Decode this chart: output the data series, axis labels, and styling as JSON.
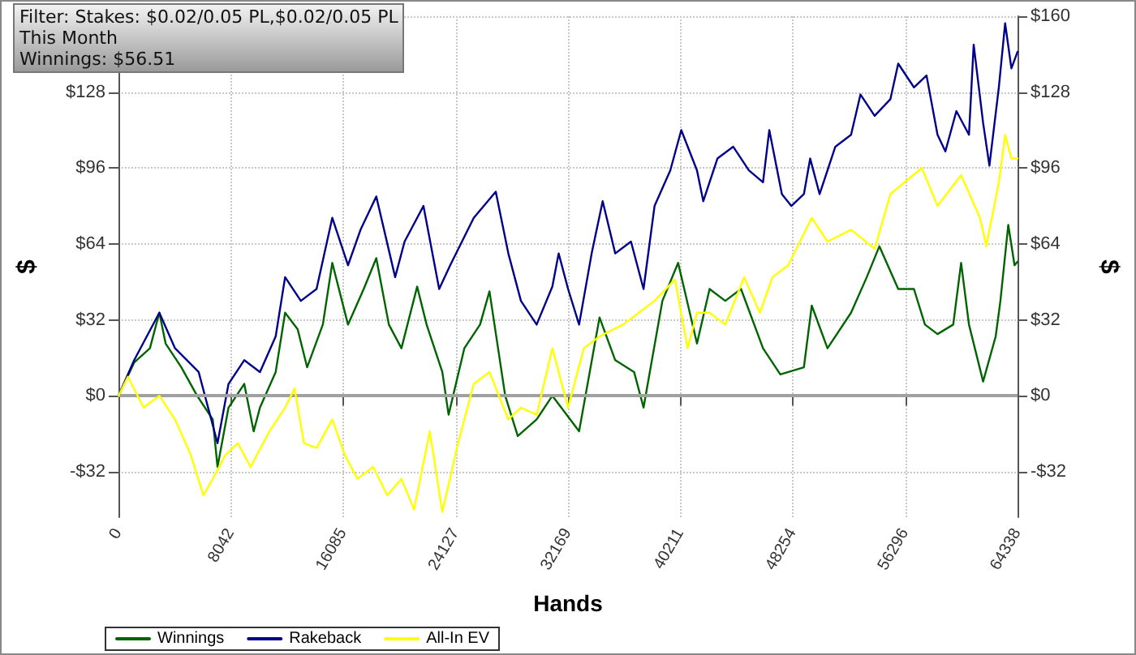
{
  "chart_data": {
    "type": "line",
    "xlabel": "Hands",
    "ylabel": "$",
    "y2label": "$",
    "annotations": [
      "Filter: Stakes: $0.02/0.05 PL,$0.02/0.05 PL",
      "This Month",
      "Winnings: $56.51"
    ],
    "xlim": [
      0,
      64338
    ],
    "xticks": [
      0,
      8042,
      16085,
      24127,
      32169,
      40211,
      48254,
      56296,
      64338
    ],
    "ylim": [
      -51.2,
      160
    ],
    "yticks": [
      {
        "value": -32,
        "label": "-$32"
      },
      {
        "value": 0,
        "label": "$0"
      },
      {
        "value": 32,
        "label": "$32"
      },
      {
        "value": 64,
        "label": "$64"
      },
      {
        "value": 96,
        "label": "$96"
      },
      {
        "value": 128,
        "label": "$128"
      },
      {
        "value": 160,
        "label": null
      }
    ],
    "y2lim": [
      -51.2,
      160
    ],
    "y2ticks": [
      {
        "value": -32,
        "label": "-$32"
      },
      {
        "value": 0,
        "label": "$0"
      },
      {
        "value": 32,
        "label": "$32"
      },
      {
        "value": 64,
        "label": "$64"
      },
      {
        "value": 96,
        "label": "$96"
      },
      {
        "value": 128,
        "label": "$128"
      },
      {
        "value": 160,
        "label": "$160"
      }
    ],
    "grid": true,
    "legend": "bottom left",
    "marker": "none",
    "line_style": "solid",
    "ref_lines": [
      {
        "axis": "y",
        "value": 0,
        "label": null,
        "color": "#a0a0a0"
      }
    ],
    "series": [
      {
        "name": "Winnings",
        "color": "#006400",
        "x": [
          0,
          1125,
          2250,
          2925,
          3375,
          4500,
          5625,
          6750,
          7088,
          7875,
          9000,
          9675,
          10125,
          11250,
          11925,
          12825,
          13500,
          14625,
          15300,
          16425,
          17550,
          18450,
          19350,
          20250,
          21375,
          22050,
          23175,
          23625,
          24750,
          25875,
          26550,
          27675,
          28575,
          29925,
          31050,
          32963,
          34425,
          35550,
          36900,
          37575,
          38925,
          40050,
          41400,
          42300,
          43425,
          44550,
          46125,
          47363,
          49050,
          49613,
          50738,
          52425,
          53550,
          54450,
          55800,
          56925,
          57713,
          58613,
          59738,
          60300,
          60863,
          61875,
          62775,
          63113,
          63675,
          64125,
          64338
        ],
        "values": [
          0,
          14,
          20,
          35,
          22,
          12,
          0,
          -10,
          -30,
          -5,
          5,
          -15,
          -5,
          10,
          35,
          28,
          12,
          30,
          56,
          30,
          45,
          58,
          30,
          20,
          46,
          30,
          10,
          -8,
          20,
          30,
          44,
          0,
          -17,
          -10,
          0,
          -15,
          33,
          15,
          10,
          -5,
          40,
          56,
          22,
          45,
          40,
          45,
          20,
          9,
          12,
          38,
          20,
          35,
          50,
          63,
          45,
          45,
          30,
          26,
          30,
          56,
          30,
          6,
          25,
          40,
          72,
          55,
          56.5
        ]
      },
      {
        "name": "Rakeback",
        "color": "#00008b",
        "x": [
          0,
          1125,
          2925,
          4050,
          5738,
          7088,
          7875,
          9000,
          10125,
          11250,
          11925,
          13050,
          14175,
          15300,
          16425,
          17325,
          18450,
          19800,
          20475,
          21825,
          22950,
          23738,
          25425,
          27000,
          27900,
          28800,
          29925,
          31050,
          31500,
          32175,
          32963,
          33863,
          34650,
          35550,
          36675,
          37575,
          38363,
          39488,
          40275,
          41400,
          41850,
          42863,
          43988,
          45113,
          46125,
          46575,
          47475,
          48150,
          49050,
          49500,
          50175,
          51300,
          52425,
          53100,
          54113,
          55238,
          55800,
          56925,
          57825,
          58613,
          59175,
          59963,
          60863,
          61200,
          61875,
          62325,
          63000,
          63450,
          63900,
          64338
        ],
        "values": [
          0,
          15,
          35,
          20,
          10,
          -20,
          5,
          15,
          10,
          25,
          50,
          40,
          45,
          75,
          55,
          70,
          84,
          50,
          65,
          80,
          45,
          55,
          75,
          86,
          60,
          40,
          30,
          46,
          60,
          45,
          30,
          60,
          82,
          60,
          65,
          45,
          80,
          95,
          112,
          95,
          82,
          100,
          105,
          95,
          90,
          112,
          85,
          80,
          85,
          100,
          85,
          105,
          110,
          127,
          118,
          125,
          140,
          130,
          135,
          110,
          103,
          120,
          110,
          148,
          115,
          97,
          130,
          157,
          138,
          145
        ]
      },
      {
        "name": "All-In EV",
        "color": "#ffff00",
        "x": [
          0,
          675,
          1800,
          2925,
          4050,
          5175,
          6075,
          6750,
          7650,
          8550,
          9450,
          10800,
          11925,
          12600,
          13275,
          14175,
          15300,
          16200,
          17100,
          18225,
          19238,
          20250,
          21150,
          22275,
          23175,
          24300,
          25425,
          26550,
          27225,
          27900,
          28800,
          29925,
          31050,
          32175,
          33300,
          34425,
          36113,
          37238,
          38363,
          39825,
          40725,
          41400,
          42300,
          43425,
          44775,
          45900,
          46800,
          47925,
          49613,
          50738,
          52425,
          54113,
          55238,
          57488,
          58613,
          60300,
          61650,
          62100,
          63000,
          63450,
          63900,
          64338
        ],
        "values": [
          0,
          8,
          -5,
          0,
          -10,
          -25,
          -42,
          -35,
          -25,
          -20,
          -30,
          -15,
          -5,
          3,
          -20,
          -22,
          -10,
          -25,
          -35,
          -30,
          -42,
          -35,
          -48,
          -15,
          -49,
          -20,
          5,
          10,
          0,
          -10,
          -5,
          -8,
          20,
          -5,
          20,
          25,
          30,
          35,
          40,
          49,
          20,
          35,
          35,
          30,
          50,
          35,
          50,
          55,
          75,
          65,
          70,
          62,
          85,
          96,
          80,
          93,
          75,
          63,
          90,
          110,
          100,
          100
        ]
      }
    ]
  }
}
